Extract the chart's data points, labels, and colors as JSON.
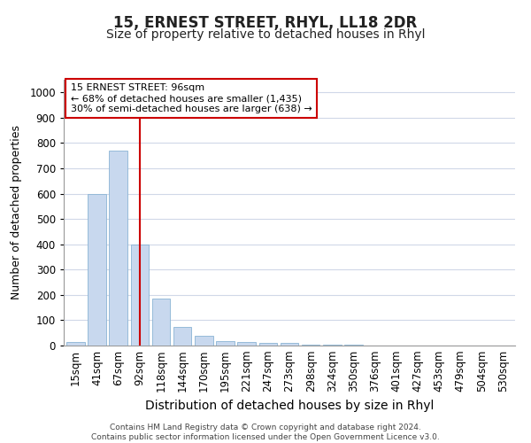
{
  "title": "15, ERNEST STREET, RHYL, LL18 2DR",
  "subtitle": "Size of property relative to detached houses in Rhyl",
  "xlabel": "Distribution of detached houses by size in Rhyl",
  "ylabel": "Number of detached properties",
  "categories": [
    "15sqm",
    "41sqm",
    "67sqm",
    "92sqm",
    "118sqm",
    "144sqm",
    "170sqm",
    "195sqm",
    "221sqm",
    "247sqm",
    "273sqm",
    "298sqm",
    "324sqm",
    "350sqm",
    "376sqm",
    "401sqm",
    "427sqm",
    "453sqm",
    "479sqm",
    "504sqm",
    "530sqm"
  ],
  "values": [
    15,
    600,
    770,
    400,
    185,
    75,
    38,
    18,
    13,
    10,
    12,
    5,
    3,
    2,
    1,
    1,
    0,
    0,
    0,
    0,
    0
  ],
  "bar_color": "#c8d8ee",
  "bar_edge_color": "#8ab4d4",
  "vline_x": 3.0,
  "vline_color": "#cc0000",
  "ylim": [
    0,
    1050
  ],
  "yticks": [
    0,
    100,
    200,
    300,
    400,
    500,
    600,
    700,
    800,
    900,
    1000
  ],
  "annotation_text": "15 ERNEST STREET: 96sqm\n← 68% of detached houses are smaller (1,435)\n30% of semi-detached houses are larger (638) →",
  "annotation_box_color": "#ffffff",
  "annotation_box_edge": "#cc0000",
  "footer": "Contains HM Land Registry data © Crown copyright and database right 2024.\nContains public sector information licensed under the Open Government Licence v3.0.",
  "background_color": "#ffffff",
  "plot_background": "#ffffff",
  "grid_color": "#d0d8e8",
  "title_fontsize": 12,
  "subtitle_fontsize": 10,
  "xlabel_fontsize": 10,
  "ylabel_fontsize": 9,
  "tick_fontsize": 8.5
}
